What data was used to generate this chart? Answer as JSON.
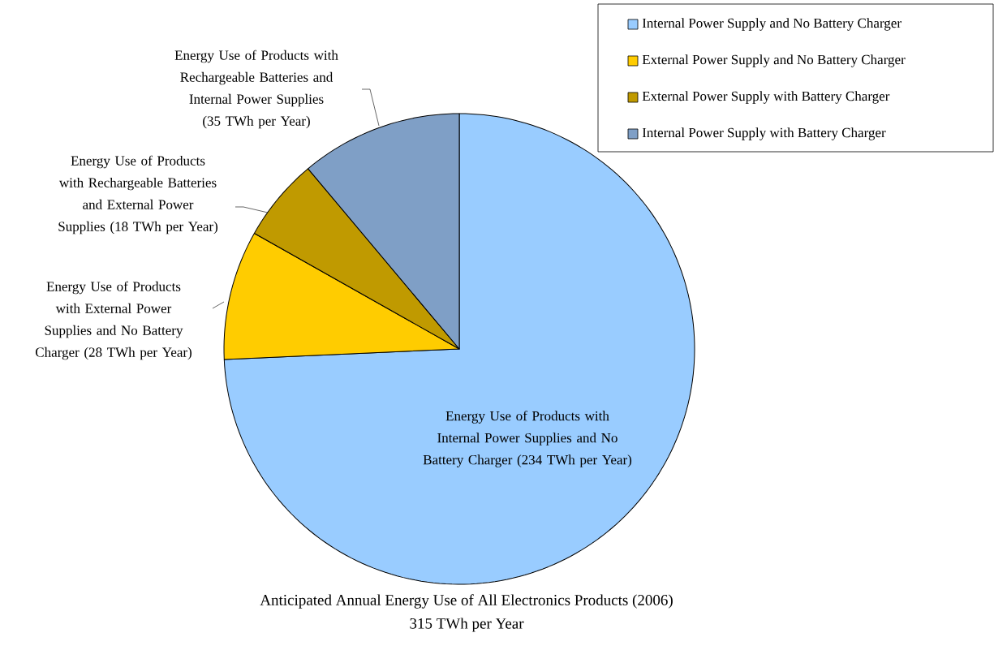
{
  "chart_data": {
    "type": "pie",
    "title": "Anticipated Annual Energy Use of All Electronics Products (2006)",
    "subtitle": "315 TWh per Year",
    "categories": [
      "Internal Power Supply and No Battery Charger",
      "External Power Supply and No Battery Charger",
      "External Power Supply with Battery Charger",
      "Internal Power Supply with Battery Charger"
    ],
    "values": [
      234,
      28,
      18,
      35
    ],
    "colors": [
      "#99ccff",
      "#ffcc00",
      "#c09a00",
      "#7f9fc6"
    ],
    "value_labels": [
      "Energy Use of Products with Internal Power Supplies and No Battery Charger (234 TWh per Year)",
      "Energy Use of Products with External Power Supplies and No Battery Charger (28 TWh per Year)",
      "Energy Use of Products with Rechargeable Batteries and External Power Supplies (18 TWh per Year)",
      "Energy Use of Products with Rechargeable Batteries and Internal Power Supplies (35 TWh per Year)"
    ],
    "legend": "top right"
  }
}
